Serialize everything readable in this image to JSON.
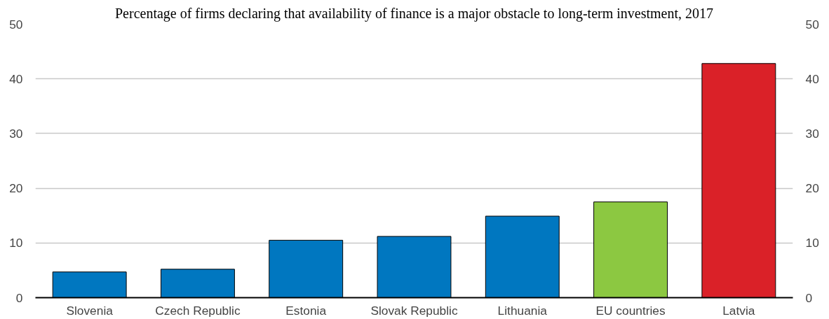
{
  "chart_data": {
    "type": "bar",
    "title": "Percentage of firms declaring that availability of finance is a major obstacle to long-term investment, 2017",
    "categories": [
      "Slovenia",
      "Czech Republic",
      "Estonia",
      "Slovak Republic",
      "Lithuania",
      "EU countries",
      "Latvia"
    ],
    "values": [
      4.7,
      5.2,
      10.5,
      11.2,
      14.9,
      17.5,
      42.8
    ],
    "colors": [
      "#0077c0",
      "#0077c0",
      "#0077c0",
      "#0077c0",
      "#0077c0",
      "#8cc841",
      "#da2128"
    ],
    "ylim": [
      0,
      50
    ],
    "yticks": [
      0,
      10,
      20,
      30,
      40,
      50
    ],
    "y2lim": [
      0,
      50
    ],
    "y2ticks": [
      0,
      10,
      20,
      30,
      40,
      50
    ],
    "grid": "y"
  }
}
